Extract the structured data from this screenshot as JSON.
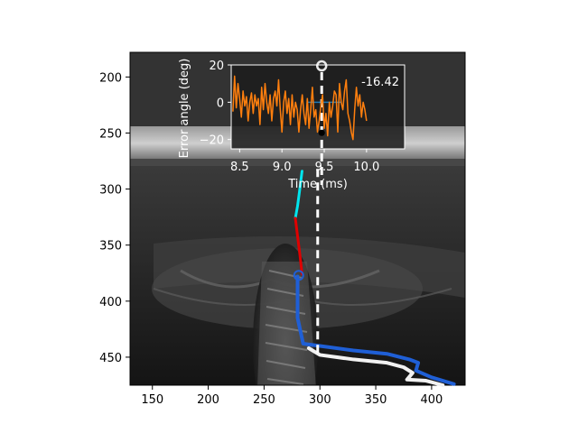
{
  "chart_data": [
    {
      "type": "image-overlay",
      "title": "",
      "xlabel": "",
      "ylabel": "",
      "xlim": [
        130,
        430
      ],
      "ylim": [
        475,
        178
      ],
      "y_inverted": true,
      "xticks": [
        150,
        200,
        250,
        300,
        350,
        400
      ],
      "yticks": [
        200,
        250,
        300,
        350,
        400,
        450
      ],
      "colors": {
        "cyan_segment": "#00e5ee",
        "red_segment": "#e00000",
        "blue_trajectory": "#1f5fd6",
        "white_trajectory": "#f2f2f2",
        "dashed_line": "#ffffff",
        "head_marker": "#1f5fd6"
      },
      "series": [
        {
          "role": "cyan_segment",
          "x": [
            284,
            282,
            280,
            278
          ],
          "y": [
            284,
            300,
            315,
            326
          ]
        },
        {
          "role": "red_segment",
          "x": [
            278,
            280,
            282,
            284
          ],
          "y": [
            326,
            342,
            358,
            376
          ]
        },
        {
          "role": "blue_trajectory",
          "x": [
            280,
            280,
            280,
            285,
            300,
            330,
            360,
            380,
            388,
            386,
            400,
            420
          ],
          "y": [
            378,
            395,
            415,
            438,
            440,
            444,
            447,
            452,
            455,
            462,
            468,
            474
          ]
        },
        {
          "role": "white_trajectory",
          "x": [
            290,
            300,
            330,
            360,
            375,
            383,
            378,
            395,
            410
          ],
          "y": [
            442,
            448,
            452,
            455,
            459,
            464,
            470,
            471,
            475
          ]
        },
        {
          "role": "dashed_line",
          "x": [
            298,
            298
          ],
          "y": [
            282,
            448
          ]
        }
      ],
      "markers": [
        {
          "role": "head_marker",
          "x": 281,
          "y": 377
        }
      ]
    },
    {
      "type": "line",
      "title": "",
      "xlabel": "Time (ms)",
      "ylabel": "Error angle (deg)",
      "xlim": [
        8.4,
        10.45
      ],
      "ylim": [
        -25,
        20
      ],
      "xticks": [
        "8.5",
        "9.0",
        "9.5",
        "10.0"
      ],
      "yticks": [
        "20",
        "0",
        "−20"
      ],
      "annotation": "-16.42",
      "colors": {
        "error": "#ff7f0e",
        "reference": "#1f77b4",
        "current_marker": "#000000",
        "ring": "#e8e8e8",
        "dashed": "#ffffff"
      },
      "series": [
        {
          "color": "#ff7f0e",
          "x": [
            8.42,
            8.44,
            8.46,
            8.48,
            8.5,
            8.52,
            8.54,
            8.56,
            8.58,
            8.6,
            8.62,
            8.64,
            8.66,
            8.68,
            8.7,
            8.72,
            8.74,
            8.76,
            8.78,
            8.8,
            8.82,
            8.84,
            8.86,
            8.88,
            8.9,
            8.92,
            8.94,
            8.96,
            8.98,
            9.0,
            9.02,
            9.04,
            9.06,
            9.08,
            9.1,
            9.12,
            9.14,
            9.16,
            9.18,
            9.2,
            9.22,
            9.24,
            9.26,
            9.28,
            9.3,
            9.32,
            9.34,
            9.36,
            9.38,
            9.4,
            9.42,
            9.44,
            9.46,
            9.48,
            9.5,
            9.52,
            9.54,
            9.56,
            9.58,
            9.6,
            9.62,
            9.64,
            9.66,
            9.68,
            9.7,
            9.72,
            9.74,
            9.76,
            9.78,
            9.8,
            9.82,
            9.84,
            9.86,
            9.88,
            9.9,
            9.92,
            9.94,
            9.96,
            9.98,
            10.0
          ],
          "y": [
            -5,
            14,
            -3,
            10,
            2,
            -8,
            6,
            -2,
            3,
            -10,
            0,
            5,
            -6,
            4,
            -2,
            2,
            -12,
            8,
            -4,
            10,
            0,
            -6,
            4,
            -10,
            2,
            6,
            -2,
            12,
            -4,
            -16,
            0,
            6,
            -6,
            2,
            -12,
            4,
            -8,
            0,
            -4,
            -16,
            -4,
            4,
            -6,
            -12,
            2,
            -14,
            -4,
            8,
            -8,
            -4,
            -16,
            -10,
            -2,
            4,
            -14,
            -6,
            -18,
            0,
            -8,
            -2,
            6,
            4,
            -16,
            10,
            0,
            -4,
            6,
            12,
            -6,
            -10,
            -16,
            -20,
            -4,
            8,
            -2,
            4,
            -8,
            0,
            -4,
            -10
          ]
        }
      ],
      "reference_segment": {
        "x": [
          9.3,
          9.7
        ],
        "y": [
          0,
          0
        ]
      },
      "current_point": {
        "x": 9.47,
        "y": -16.42
      },
      "ring_point": {
        "x": 9.47,
        "y": 19.5
      }
    }
  ]
}
